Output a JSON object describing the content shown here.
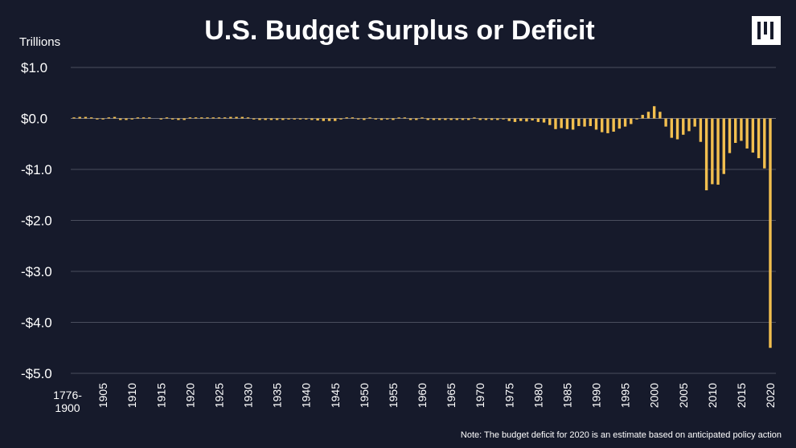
{
  "chart_data": {
    "type": "bar",
    "title": "U.S. Budget Surplus or Deficit",
    "ylabel": "Trillions",
    "ylim": [
      -5.0,
      1.0
    ],
    "yticks": [
      1.0,
      0.0,
      -1.0,
      -2.0,
      -3.0,
      -4.0,
      -5.0
    ],
    "ytick_labels": [
      "$1.0",
      "$0.0",
      "-$1.0",
      "-$2.0",
      "-$3.0",
      "-$4.0",
      "-$5.0"
    ],
    "first_category_label": "1776-\n1900",
    "xtick_labels": [
      "1905",
      "1910",
      "1915",
      "1920",
      "1925",
      "1930",
      "1935",
      "1940",
      "1945",
      "1950",
      "1955",
      "1960",
      "1965",
      "1970",
      "1975",
      "1980",
      "1985",
      "1990",
      "1995",
      "2000",
      "2005",
      "2010",
      "2015",
      "2020"
    ],
    "grid": true,
    "bar_color": "#f2bf4f",
    "x": [
      1900,
      1901,
      1902,
      1903,
      1904,
      1905,
      1906,
      1907,
      1908,
      1909,
      1910,
      1911,
      1912,
      1913,
      1914,
      1915,
      1916,
      1917,
      1918,
      1919,
      1920,
      1921,
      1922,
      1923,
      1924,
      1925,
      1926,
      1927,
      1928,
      1929,
      1930,
      1931,
      1932,
      1933,
      1934,
      1935,
      1936,
      1937,
      1938,
      1939,
      1940,
      1941,
      1942,
      1943,
      1944,
      1945,
      1946,
      1947,
      1948,
      1949,
      1950,
      1951,
      1952,
      1953,
      1954,
      1955,
      1956,
      1957,
      1958,
      1959,
      1960,
      1961,
      1962,
      1963,
      1964,
      1965,
      1966,
      1967,
      1968,
      1969,
      1970,
      1971,
      1972,
      1973,
      1974,
      1975,
      1976,
      1977,
      1978,
      1979,
      1980,
      1981,
      1982,
      1983,
      1984,
      1985,
      1986,
      1987,
      1988,
      1989,
      1990,
      1991,
      1992,
      1993,
      1994,
      1995,
      1996,
      1997,
      1998,
      1999,
      2000,
      2001,
      2002,
      2003,
      2004,
      2005,
      2006,
      2007,
      2008,
      2009,
      2010,
      2011,
      2012,
      2013,
      2014,
      2015,
      2016,
      2017,
      2018,
      2019,
      2020
    ],
    "values": [
      0.02,
      0.03,
      0.03,
      0.02,
      -0.02,
      -0.02,
      0.02,
      0.03,
      -0.03,
      -0.03,
      -0.02,
      0.02,
      0.02,
      0.02,
      null,
      -0.02,
      0.02,
      -0.02,
      -0.03,
      -0.03,
      0.02,
      0.02,
      0.02,
      0.02,
      0.02,
      0.02,
      0.02,
      0.03,
      0.03,
      0.03,
      0.02,
      -0.02,
      -0.03,
      -0.03,
      -0.03,
      -0.03,
      -0.03,
      -0.02,
      -0.02,
      -0.02,
      -0.02,
      -0.03,
      -0.04,
      -0.05,
      -0.05,
      -0.05,
      -0.02,
      0.02,
      0.02,
      -0.01,
      -0.03,
      0.01,
      -0.02,
      -0.03,
      -0.02,
      -0.03,
      0.01,
      0.01,
      -0.03,
      -0.03,
      0.01,
      -0.03,
      -0.03,
      -0.03,
      -0.03,
      -0.03,
      -0.03,
      -0.03,
      -0.03,
      0.01,
      -0.03,
      -0.03,
      -0.03,
      -0.03,
      -0.01,
      -0.05,
      -0.07,
      -0.05,
      -0.06,
      -0.04,
      -0.07,
      -0.08,
      -0.13,
      -0.21,
      -0.19,
      -0.21,
      -0.22,
      -0.15,
      -0.16,
      -0.15,
      -0.22,
      -0.27,
      -0.29,
      -0.26,
      -0.2,
      -0.16,
      -0.11,
      -0.02,
      0.07,
      0.13,
      0.24,
      0.13,
      -0.16,
      -0.38,
      -0.41,
      -0.32,
      -0.25,
      -0.16,
      -0.46,
      -1.41,
      -1.29,
      -1.3,
      -1.09,
      -0.68,
      -0.48,
      -0.44,
      -0.59,
      -0.67,
      -0.78,
      -0.98,
      -4.5
    ]
  },
  "note": "Note: The budget deficit for 2020 is an estimate based on anticipated policy action",
  "logo": "logo-mark"
}
